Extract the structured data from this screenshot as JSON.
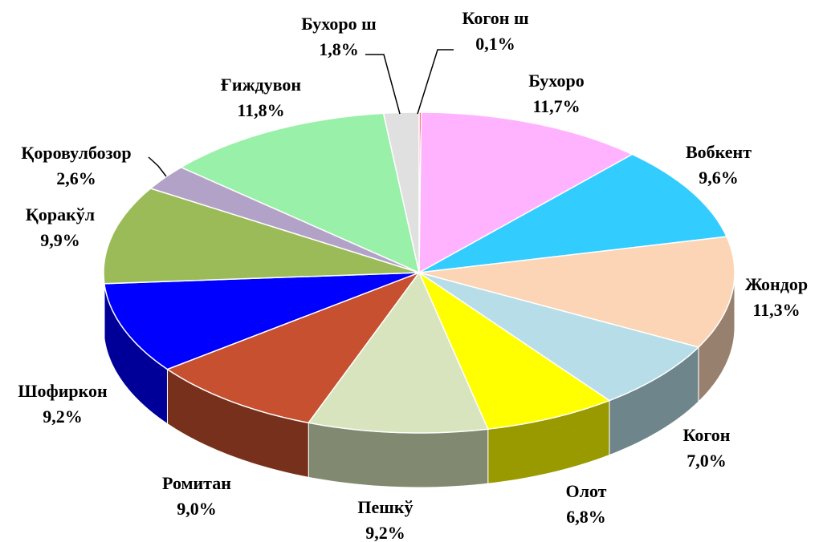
{
  "chart_data": {
    "type": "pie3d",
    "categories": [
      "Когон ш",
      "Бухоро",
      "Вобкент",
      "Жондор",
      "Когон",
      "Олот",
      "Пешкў",
      "Ромитан",
      "Шофиркон",
      "Қоракўл",
      "Қоровулбозор",
      "Ғиждувон",
      "Бухоро ш"
    ],
    "values": [
      0.1,
      11.7,
      9.6,
      11.3,
      7.0,
      6.8,
      9.2,
      9.0,
      9.2,
      9.9,
      2.6,
      11.8,
      1.8
    ],
    "value_labels": [
      "0,1%",
      "11,7%",
      "9,6%",
      "11,3%",
      "7,0%",
      "6,8%",
      "9,2%",
      "9,0%",
      "9,2%",
      "9,9%",
      "2,6%",
      "11,8%",
      "1,8%"
    ],
    "colors": [
      "#ff0000",
      "#ffb3ff",
      "#33ccff",
      "#fbd5b5",
      "#b7dde8",
      "#ffff00",
      "#d7e4bd",
      "#c6502f",
      "#0000ff",
      "#9bbb59",
      "#b3a2c7",
      "#99f0a8",
      "#e0e0e0"
    ]
  }
}
